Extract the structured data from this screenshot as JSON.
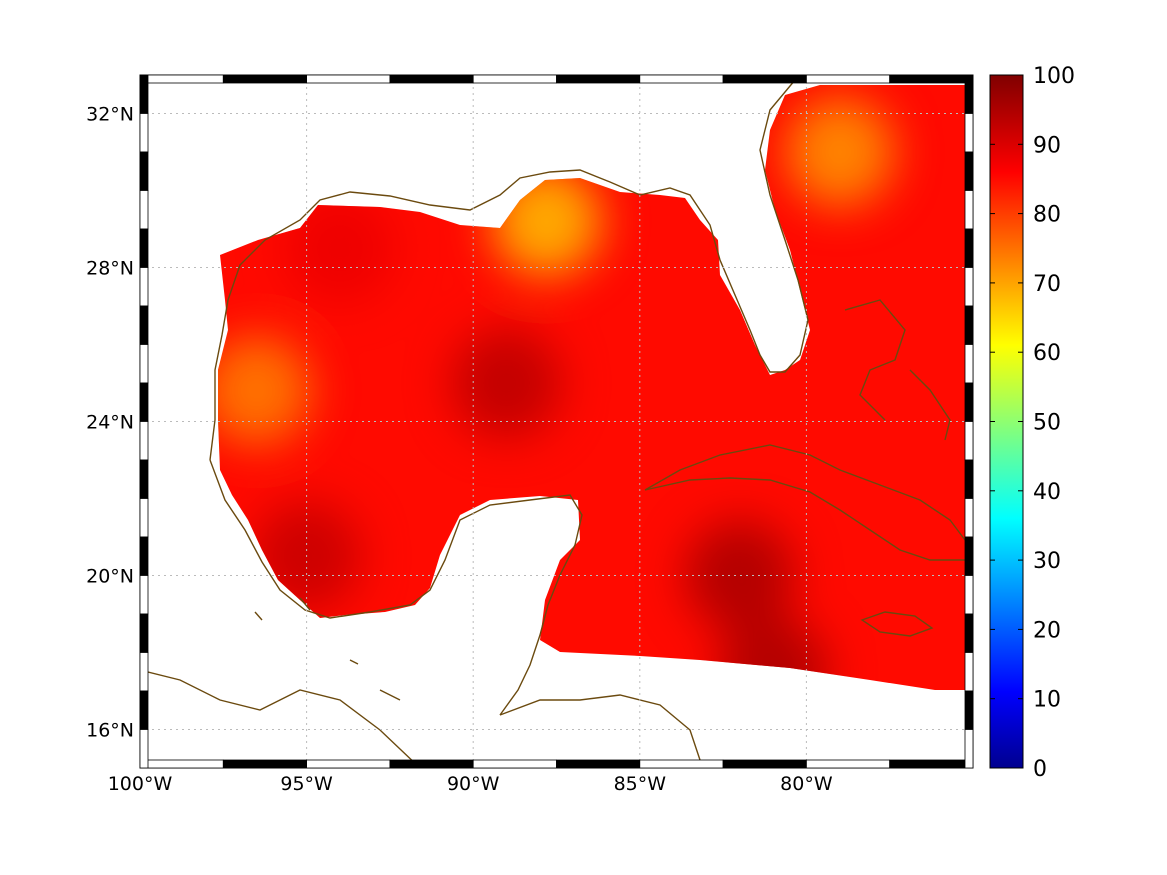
{
  "map": {
    "lon_range": [
      -100,
      -75
    ],
    "lat_range": [
      15,
      33
    ],
    "lon_ticks": [
      {
        "value": -100,
        "label": "100°W"
      },
      {
        "value": -95,
        "label": "95°W"
      },
      {
        "value": -90,
        "label": "90°W"
      },
      {
        "value": -85,
        "label": "85°W"
      },
      {
        "value": -80,
        "label": "80°W"
      }
    ],
    "lat_ticks": [
      {
        "value": 32,
        "label": "32°N"
      },
      {
        "value": 28,
        "label": "28°N"
      },
      {
        "value": 24,
        "label": "24°N"
      },
      {
        "value": 20,
        "label": "20°N"
      },
      {
        "value": 16,
        "label": "16°N"
      }
    ],
    "grid": true,
    "coastline_color": "#6b4a0f"
  },
  "colorbar": {
    "range": [
      0,
      100
    ],
    "ticks": [
      "0",
      "10",
      "20",
      "30",
      "40",
      "50",
      "60",
      "70",
      "80",
      "90",
      "100"
    ],
    "colormap": "jet"
  },
  "field": {
    "typical_value": 85,
    "hotspots": [
      {
        "lon": -87.8,
        "lat": 29.2,
        "value": 68
      },
      {
        "lon": -89.0,
        "lat": 25.0,
        "value": 93
      },
      {
        "lon": -82.0,
        "lat": 20.0,
        "value": 95
      },
      {
        "lon": -81.0,
        "lat": 17.5,
        "value": 95
      },
      {
        "lon": -95.0,
        "lat": 20.5,
        "value": 92
      },
      {
        "lon": -96.5,
        "lat": 24.8,
        "value": 74
      },
      {
        "lon": -79.0,
        "lat": 31.0,
        "value": 72
      },
      {
        "lon": -94.0,
        "lat": 28.5,
        "value": 88
      }
    ]
  }
}
